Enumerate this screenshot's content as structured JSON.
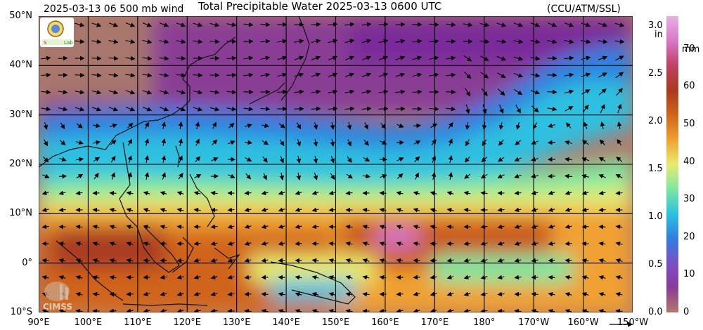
{
  "header": {
    "left_title": "2025-03-13 06 500 mb wind",
    "center_title": "Total Precipitable Water  2025-03-13 0600 UTC",
    "right_title": "(CCU/ATM/SSL)"
  },
  "logos": {
    "top_left": "SSL Lab seal",
    "bottom_left": "CIMSS"
  },
  "axes": {
    "lat_labels": [
      "50°N",
      "40°N",
      "30°N",
      "20°N",
      "10°N",
      "0°",
      "10°S"
    ],
    "lon_labels": [
      "90°E",
      "100°E",
      "110°E",
      "120°E",
      "130°E",
      "140°E",
      "150°E",
      "160°E",
      "170°E",
      "180°",
      "170°W",
      "160°W",
      "150°W"
    ]
  },
  "colorbar": {
    "inch_unit": "in",
    "mm_unit": "mm",
    "inch_ticks": [
      "3.0",
      "2.5",
      "2.0",
      "1.5",
      "1.0",
      "0.5",
      "0.0"
    ],
    "mm_ticks": [
      "70",
      "60",
      "50",
      "40",
      "30",
      "20",
      "10",
      "0"
    ],
    "colors": [
      "#b07a6a",
      "#8a3c95",
      "#7a50c8",
      "#2f7fe0",
      "#2fc0e0",
      "#7ee8a0",
      "#e8ec70",
      "#f0a030",
      "#d0641a",
      "#a83a20",
      "#c04060",
      "#d878c8",
      "#e8b0e0"
    ]
  },
  "colors": {
    "land_outline": "#111111",
    "grid": "#000000",
    "arrows": "#000000"
  }
}
